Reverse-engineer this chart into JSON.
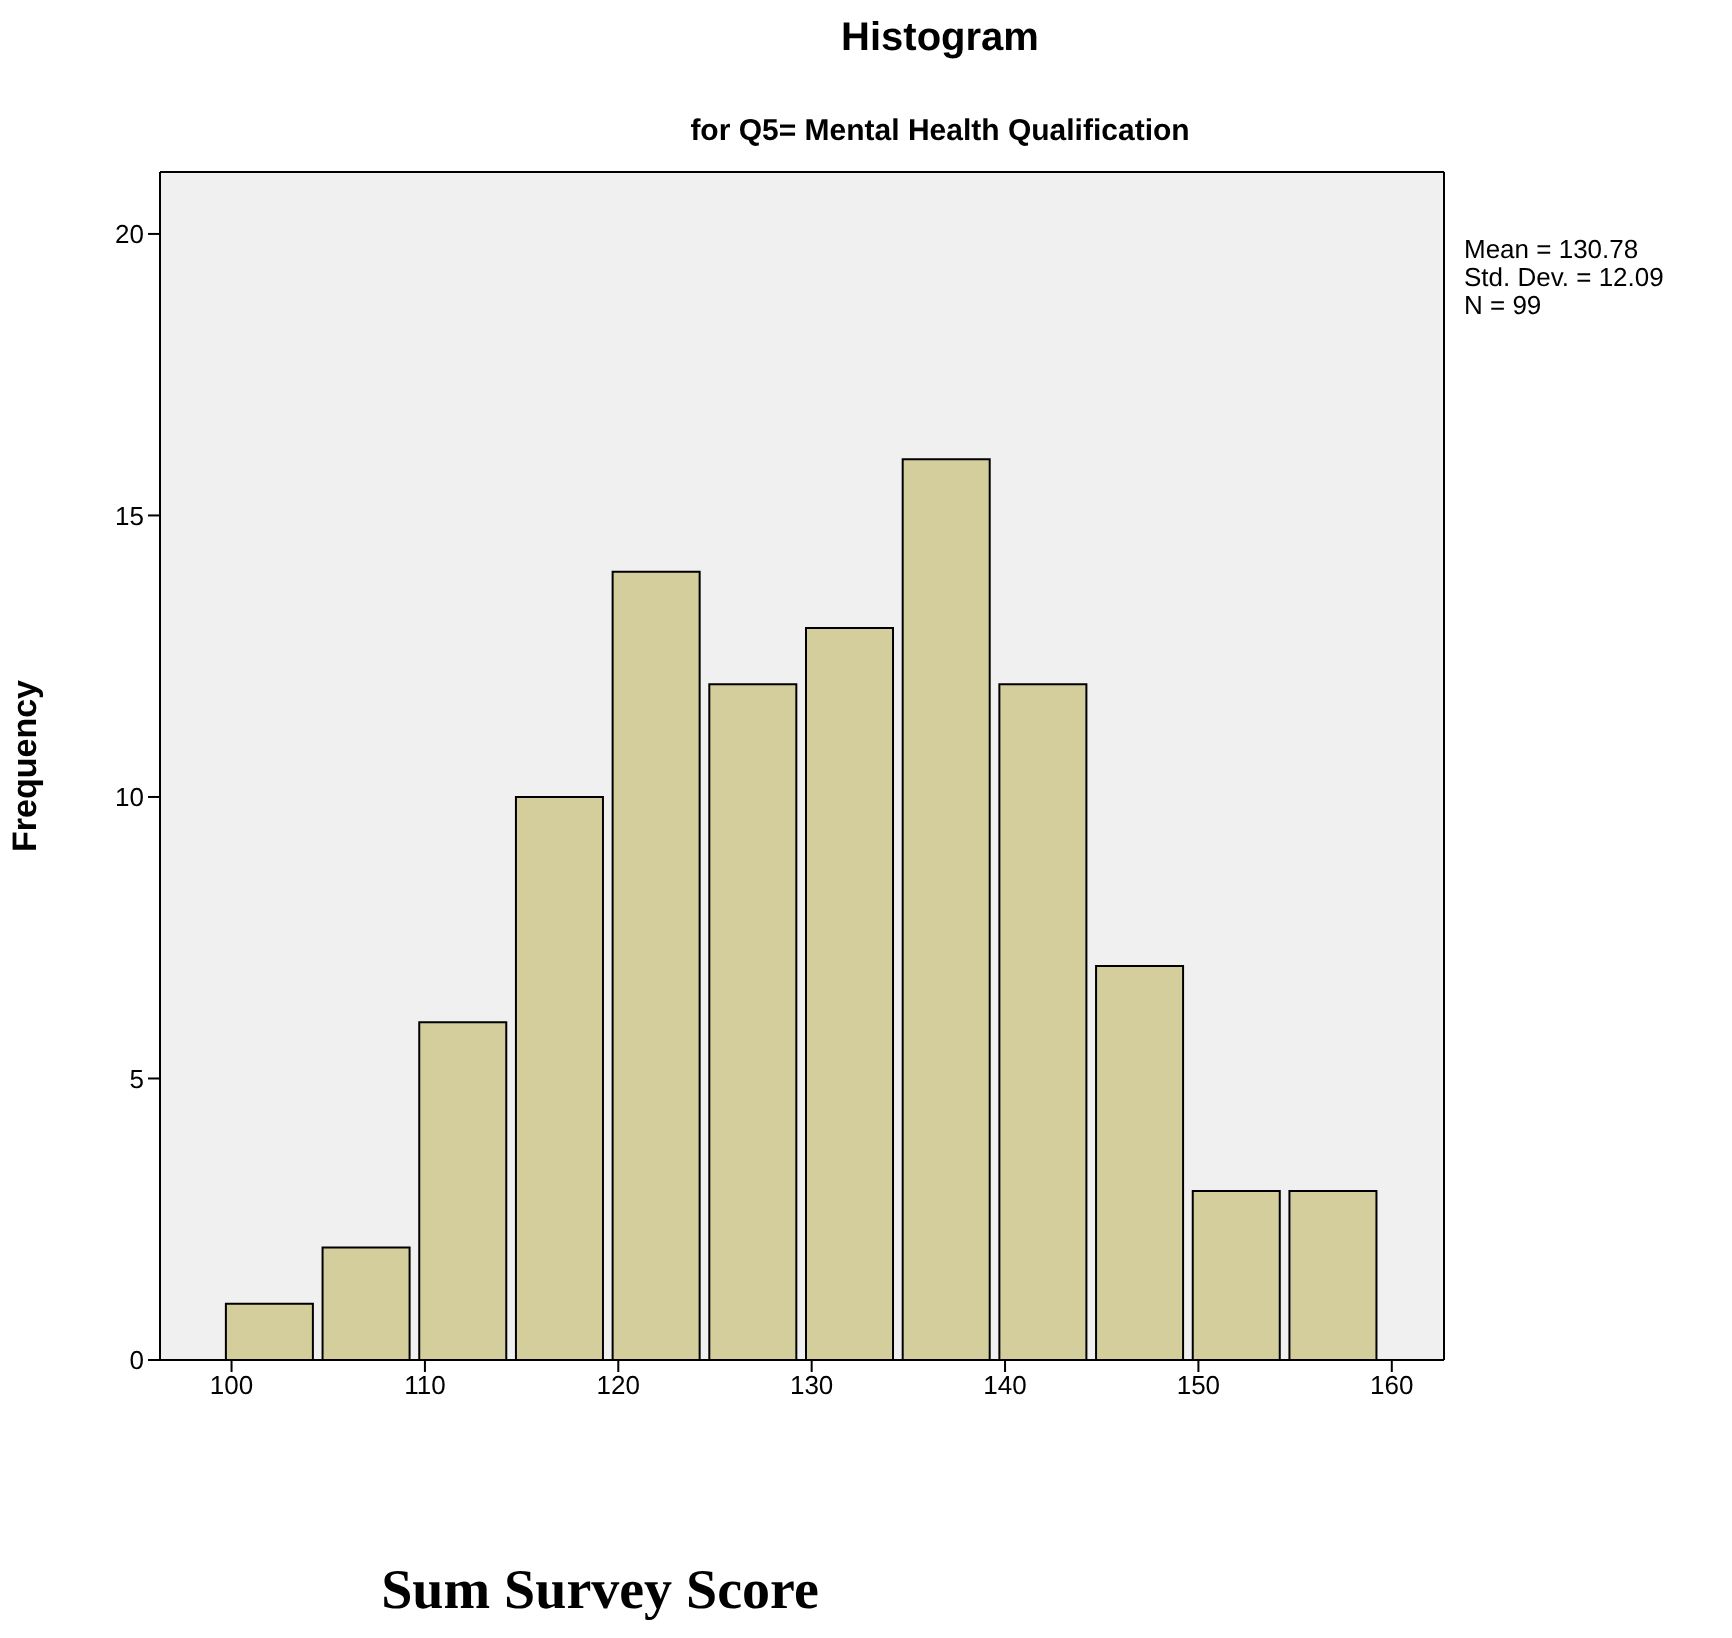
{
  "chart_data": {
    "type": "histogram",
    "title": "Histogram",
    "subtitle": "for Q5= Mental Health Qualification",
    "xlabel": "Sum Survey Score",
    "ylabel": "Frequency",
    "bins": [
      99.5,
      104.5,
      109.5,
      114.5,
      119.5,
      124.5,
      129.5,
      134.5,
      139.5,
      144.5,
      149.5,
      154.5,
      159.5
    ],
    "values": [
      1,
      2,
      6,
      10,
      14,
      12,
      13,
      16,
      12,
      7,
      3,
      3
    ],
    "color": "#d3ce9b",
    "xlim": [
      96.3,
      162.7
    ],
    "xticks": [
      100,
      110,
      120,
      130,
      140,
      150,
      160
    ],
    "ylim": [
      0,
      21.1
    ],
    "yticks": [
      0,
      5,
      10,
      15,
      20
    ],
    "annotations": [
      "Mean = 130.78",
      "Std. Dev. = 12.09",
      "N = 99"
    ]
  }
}
